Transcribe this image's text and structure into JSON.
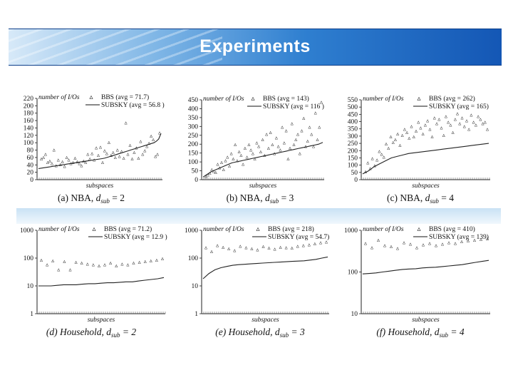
{
  "slide": {
    "title": "Experiments"
  },
  "charts": [
    {
      "id": "a",
      "dataset": "NBA",
      "dsub": "2",
      "ylabel": "number of I/Os",
      "xlabel": "subspaces",
      "yticks": [
        "220",
        "200",
        "180",
        "160",
        "140",
        "120",
        "100",
        "80",
        "60",
        "40",
        "20",
        "0"
      ],
      "legend": [
        "BBS (avg = 71.7)",
        "SUBSKY (avg = 56.8 )"
      ],
      "caption_prefix": "(a) NBA, ",
      "caption_var": "d",
      "caption_sub": "sub",
      "caption_suffix": " = 2"
    },
    {
      "id": "b",
      "dataset": "NBA",
      "dsub": "3",
      "ylabel": "number of I/Os",
      "xlabel": "subspaces",
      "yticks": [
        "450",
        "400",
        "350",
        "300",
        "250",
        "200",
        "150",
        "100",
        "50",
        "0"
      ],
      "legend": [
        "BBS (avg = 143)",
        "SUBSKY (avg = 116 )"
      ],
      "caption_prefix": "(b) NBA, ",
      "caption_var": "d",
      "caption_sub": "sub",
      "caption_suffix": " = 3"
    },
    {
      "id": "c",
      "dataset": "NBA",
      "dsub": "4",
      "ylabel": "number of I/Os",
      "xlabel": "subspaces",
      "yticks": [
        "550",
        "500",
        "450",
        "400",
        "350",
        "300",
        "250",
        "200",
        "150",
        "100",
        "50",
        "0"
      ],
      "legend": [
        "BBS (avg = 262)",
        "SUBSKY (avg = 165)"
      ],
      "caption_prefix": "(c) NBA, ",
      "caption_var": "d",
      "caption_sub": "sub",
      "caption_suffix": " = 4"
    },
    {
      "id": "d",
      "dataset": "Household",
      "dsub": "2",
      "ylabel": "number of I/Os",
      "xlabel": "subspaces",
      "yticks": [
        "1000",
        "100",
        "10",
        "1"
      ],
      "legend": [
        "BBS (avg = 71.2)",
        "SUBSKY (avg = 12.9 )"
      ],
      "caption_prefix": "(d) Household, ",
      "caption_var": "d",
      "caption_sub": "sub",
      "caption_suffix": " = 2"
    },
    {
      "id": "e",
      "dataset": "Household",
      "dsub": "3",
      "ylabel": "number of I/Os",
      "xlabel": "subspaces",
      "yticks": [
        "1000",
        "100",
        "10",
        "1"
      ],
      "legend": [
        "BBS (avg = 218)",
        "SUBSKY (avg = 54.7)"
      ],
      "caption_prefix": "(e) Household, ",
      "caption_var": "d",
      "caption_sub": "sub",
      "caption_suffix": " = 3"
    },
    {
      "id": "f",
      "dataset": "Household",
      "dsub": "4",
      "ylabel": "number of I/Os",
      "xlabel": "subspaces",
      "yticks": [
        "1000",
        "100",
        "10"
      ],
      "legend": [
        "BBS (avg = 410)",
        "SUBSKY (avg = 139)"
      ],
      "caption_prefix": "(f) Household, ",
      "caption_var": "d",
      "caption_sub": "sub",
      "caption_suffix": " = 4"
    }
  ],
  "chart_data": [
    {
      "type": "scatter",
      "id": "a",
      "ylim": [
        0,
        220
      ],
      "series": [
        {
          "name": "BBS",
          "values": [
            58,
            62,
            70,
            48,
            52,
            45,
            82,
            40,
            55,
            42,
            50,
            38,
            62,
            55,
            45,
            48,
            60,
            50,
            45,
            40,
            52,
            48,
            70,
            58,
            72,
            55,
            88,
            68,
            90,
            48,
            80,
            72,
            102,
            68,
            75,
            62,
            82,
            65,
            78,
            60,
            155,
            70,
            95,
            58,
            75,
            88,
            60,
            105,
            70,
            80,
            92,
            100,
            120,
            110,
            65,
            70,
            128
          ]
        },
        {
          "name": "SUBSKY",
          "values": [
            30,
            31,
            32,
            33,
            34,
            35,
            36,
            37,
            38,
            39,
            40,
            41,
            42,
            43,
            44,
            45,
            46,
            47,
            48,
            49,
            50,
            51,
            52,
            53,
            54,
            55,
            56,
            57,
            58,
            60,
            62,
            64,
            66,
            68,
            70,
            72,
            74,
            76,
            78,
            80,
            82,
            84,
            86,
            88,
            90,
            92,
            94,
            96,
            98,
            100,
            104,
            110,
            125
          ]
        }
      ]
    },
    {
      "type": "scatter",
      "id": "b",
      "ylim": [
        0,
        450
      ],
      "series": [
        {
          "name": "BBS",
          "values": [
            20,
            30,
            40,
            60,
            50,
            45,
            90,
            70,
            100,
            60,
            110,
            130,
            80,
            150,
            120,
            200,
            110,
            160,
            140,
            90,
            180,
            130,
            200,
            170,
            150,
            120,
            210,
            190,
            160,
            230,
            140,
            260,
            180,
            270,
            200,
            150,
            240,
            190,
            170,
            300,
            210,
            280,
            120,
            180,
            320,
            200,
            230,
            260,
            150,
            280,
            350,
            190,
            220,
            300,
            260,
            190,
            380,
            230,
            300,
            440
          ]
        },
        {
          "name": "SUBSKY",
          "values": [
            15,
            30,
            45,
            55,
            65,
            75,
            85,
            95,
            100,
            105,
            110,
            115,
            120,
            125,
            130,
            135,
            140,
            145,
            150,
            155,
            160,
            165,
            170,
            175,
            180,
            185,
            190,
            195,
            200,
            210
          ]
        }
      ]
    },
    {
      "type": "scatter",
      "id": "c",
      "ylim": [
        0,
        550
      ],
      "series": [
        {
          "name": "BBS",
          "values": [
            60,
            120,
            80,
            150,
            100,
            140,
            200,
            180,
            160,
            250,
            220,
            300,
            260,
            280,
            320,
            240,
            310,
            350,
            330,
            290,
            370,
            300,
            340,
            400,
            360,
            320,
            380,
            410,
            350,
            300,
            430,
            390,
            420,
            360,
            310,
            440,
            400,
            380,
            330,
            420,
            460,
            390,
            430,
            370,
            410,
            350,
            450,
            400,
            380,
            440,
            420,
            390,
            400,
            350
          ]
        },
        {
          "name": "SUBSKY",
          "values": [
            40,
            60,
            90,
            110,
            130,
            150,
            160,
            170,
            180,
            185,
            190,
            195,
            200,
            205,
            210,
            215,
            220,
            225,
            230,
            235,
            240,
            245,
            250
          ]
        }
      ]
    },
    {
      "type": "scatter",
      "id": "d",
      "scale": "log",
      "ylim": [
        1,
        1000
      ],
      "series": [
        {
          "name": "BBS",
          "values": [
            90,
            60,
            85,
            40,
            80,
            40,
            75,
            70,
            65,
            60,
            55,
            60,
            70,
            55,
            65,
            60,
            70,
            75,
            80,
            85,
            90,
            100
          ]
        },
        {
          "name": "SUBSKY",
          "values": [
            10,
            10,
            10,
            10.5,
            11,
            11,
            11,
            11.5,
            12,
            12,
            12.5,
            13,
            13,
            13.5,
            14,
            14,
            15,
            16,
            17,
            18,
            20
          ]
        }
      ]
    },
    {
      "type": "scatter",
      "id": "e",
      "scale": "log",
      "ylim": [
        1,
        1000
      ],
      "series": [
        {
          "name": "BBS",
          "values": [
            250,
            180,
            300,
            260,
            230,
            200,
            280,
            250,
            230,
            210,
            270,
            240,
            220,
            260,
            250,
            240,
            280,
            300,
            320,
            350,
            380,
            400
          ]
        },
        {
          "name": "SUBSKY",
          "values": [
            18,
            28,
            38,
            45,
            50,
            55,
            58,
            60,
            62,
            64,
            66,
            68,
            70,
            72,
            74,
            76,
            78,
            80,
            85,
            90,
            100,
            110
          ]
        }
      ]
    },
    {
      "type": "scatter",
      "id": "f",
      "scale": "log",
      "ylim": [
        10,
        1000
      ],
      "series": [
        {
          "name": "BBS",
          "values": [
            500,
            400,
            600,
            450,
            420,
            380,
            520,
            480,
            400,
            460,
            500,
            450,
            480,
            520,
            500,
            550,
            580,
            600,
            620,
            650
          ]
        },
        {
          "name": "SUBSKY",
          "values": [
            90,
            92,
            95,
            100,
            105,
            110,
            115,
            118,
            120,
            125,
            128,
            130,
            135,
            140,
            145,
            150,
            160,
            170,
            180,
            190
          ]
        }
      ]
    }
  ]
}
